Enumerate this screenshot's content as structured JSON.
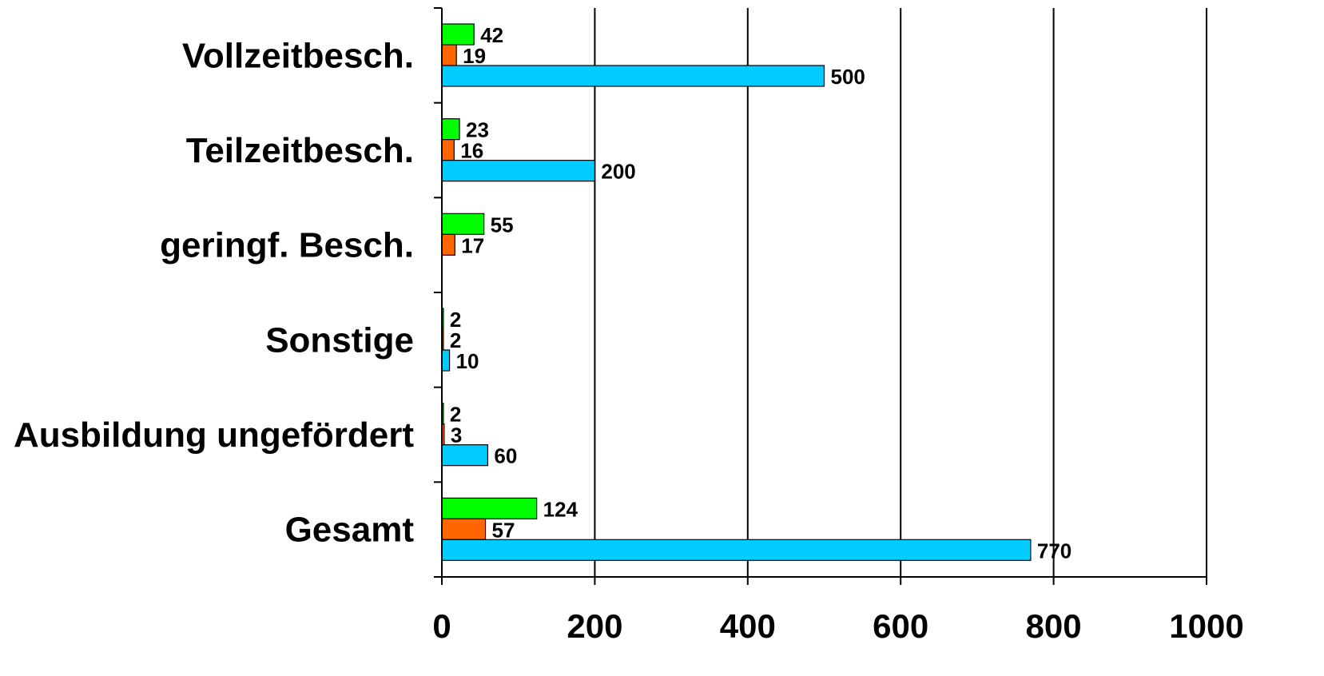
{
  "chart_data": {
    "type": "bar",
    "orientation": "horizontal",
    "categories": [
      "Vollzeitbesch.",
      "Teilzeitbesch.",
      "geringf. Besch.",
      "Sonstige",
      "Ausbildung ungefördert",
      "Gesamt"
    ],
    "series": [
      {
        "color": "#00ff00",
        "values": [
          42,
          23,
          55,
          2,
          2,
          124
        ]
      },
      {
        "color": "#ff6600",
        "values": [
          19,
          16,
          17,
          2,
          3,
          57
        ]
      },
      {
        "color": "#00ccff",
        "values": [
          500,
          200,
          null,
          10,
          60,
          770
        ]
      }
    ],
    "xlim": [
      0,
      1000
    ],
    "xticks": [
      0,
      200,
      400,
      600,
      800,
      1000
    ],
    "grid": "vertical",
    "legend": "none"
  }
}
